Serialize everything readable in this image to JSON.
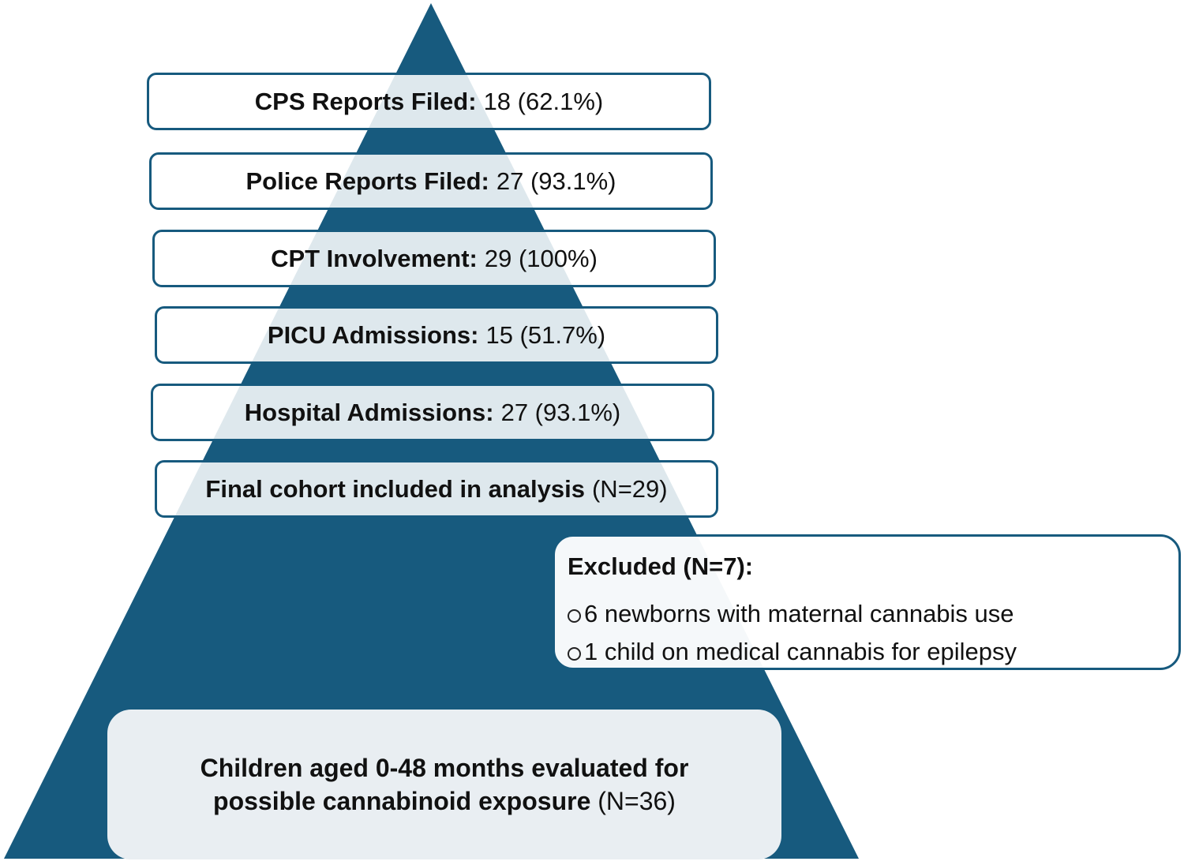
{
  "colors": {
    "pyramid_fill": "#175a7e",
    "box_border": "#175a7e",
    "base_box_fill": "#e9eef2",
    "text": "#111111"
  },
  "tiers": [
    {
      "label": "CPS Reports Filed:",
      "value": "18 (62.1%)"
    },
    {
      "label": "Police Reports Filed:",
      "value": "27 (93.1%)"
    },
    {
      "label": "CPT Involvement:",
      "value": "29 (100%)"
    },
    {
      "label": "PICU Admissions:",
      "value": "15 (51.7%)"
    },
    {
      "label": "Hospital Admissions:",
      "value": "27 (93.1%)"
    },
    {
      "label": "Final cohort included in analysis",
      "value": "(N=29)"
    }
  ],
  "excluded": {
    "title": "Excluded (N=7):",
    "items": [
      "6 newborns with maternal cannabis use",
      "1 child on medical cannabis for epilepsy"
    ]
  },
  "base": {
    "line1": "Children aged 0-48 months evaluated for",
    "line2_bold": "possible cannabinoid exposure",
    "line2_value": "(N=36)"
  }
}
